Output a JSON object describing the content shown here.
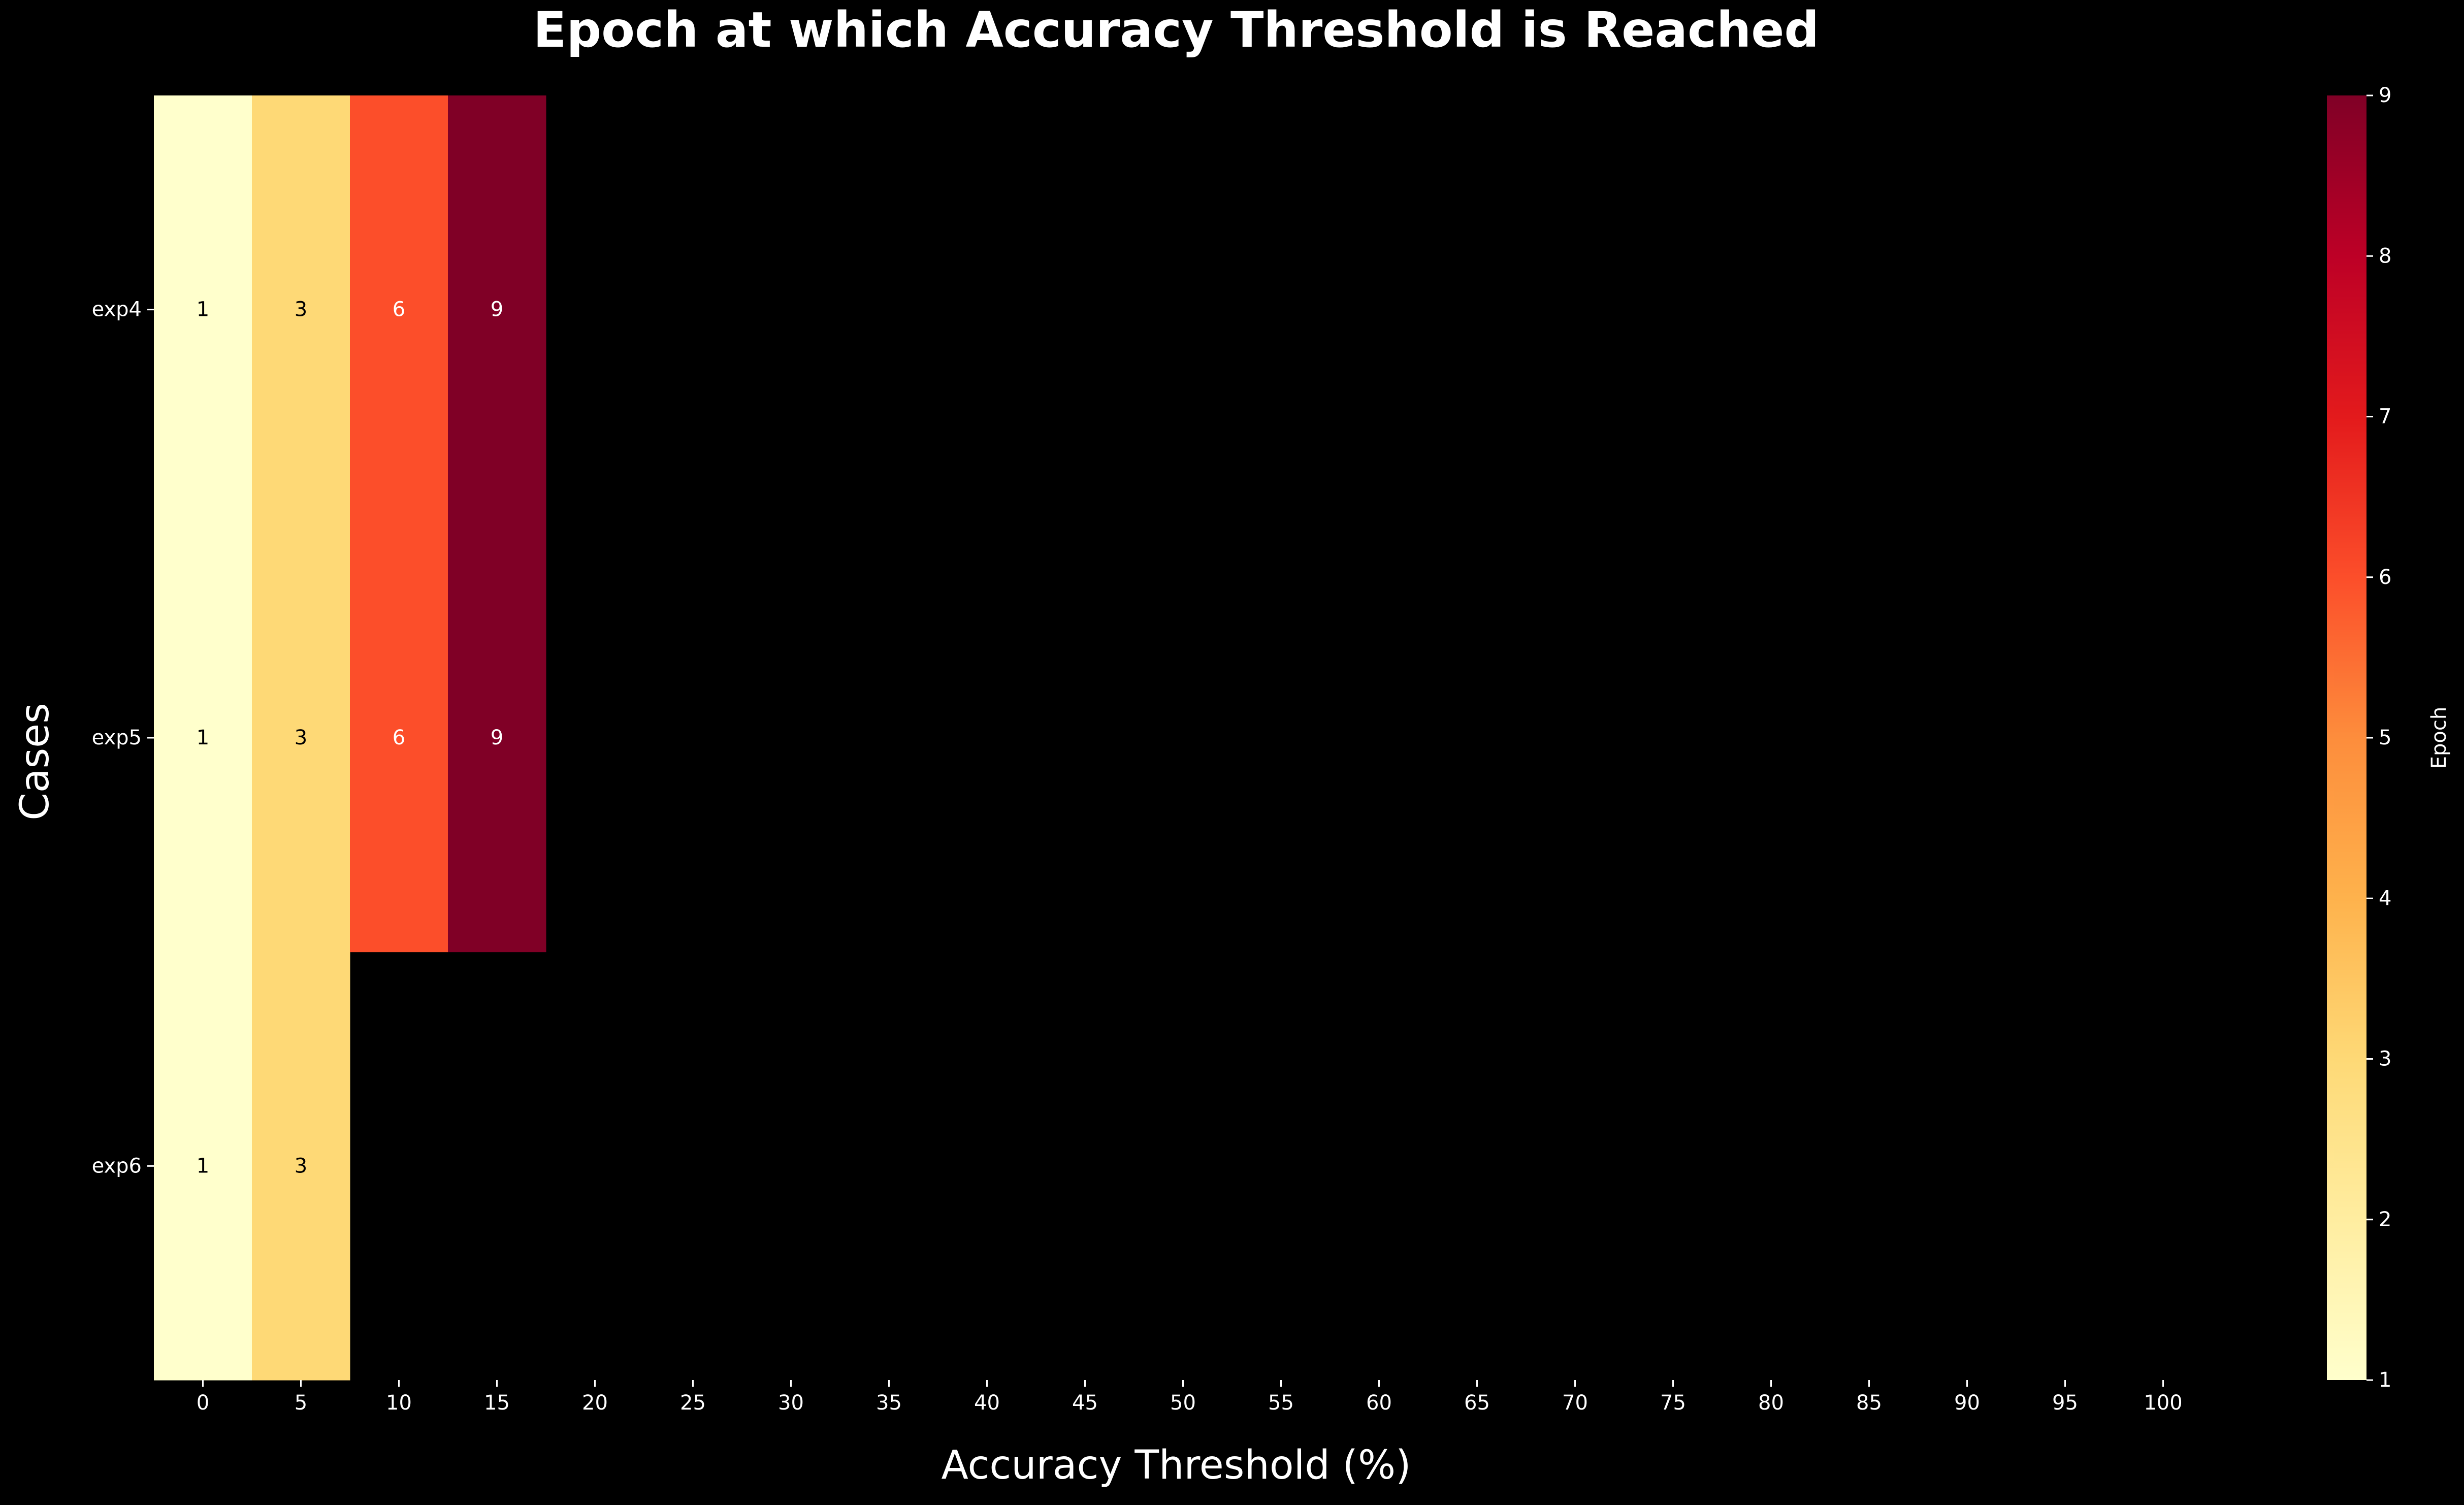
{
  "chart_data": {
    "type": "heatmap",
    "title": "Epoch at which Accuracy Threshold is Reached",
    "xlabel": "Accuracy Threshold (%)",
    "ylabel": "Cases",
    "x_categories": [
      "0",
      "5",
      "10",
      "15",
      "20",
      "25",
      "30",
      "35",
      "40",
      "45",
      "50",
      "55",
      "60",
      "65",
      "70",
      "75",
      "80",
      "85",
      "90",
      "95",
      "100"
    ],
    "y_categories": [
      "exp4",
      "exp5",
      "exp6"
    ],
    "values": [
      [
        1,
        3,
        6,
        9,
        null,
        null,
        null,
        null,
        null,
        null,
        null,
        null,
        null,
        null,
        null,
        null,
        null,
        null,
        null,
        null,
        null
      ],
      [
        1,
        3,
        6,
        9,
        null,
        null,
        null,
        null,
        null,
        null,
        null,
        null,
        null,
        null,
        null,
        null,
        null,
        null,
        null,
        null,
        null
      ],
      [
        1,
        3,
        null,
        null,
        null,
        null,
        null,
        null,
        null,
        null,
        null,
        null,
        null,
        null,
        null,
        null,
        null,
        null,
        null,
        null,
        null
      ]
    ],
    "colorbar": {
      "label": "Epoch",
      "colormap": "YlOrRd",
      "vmin": 1,
      "vmax": 9,
      "ticks": [
        "1",
        "2",
        "3",
        "4",
        "5",
        "6",
        "7",
        "8",
        "9"
      ]
    },
    "colors": {
      "background": "#000000",
      "text": "#ffffff",
      "colormap_stops": [
        "#ffffcc",
        "#ffeda0",
        "#fed976",
        "#feb24c",
        "#fd8d3c",
        "#fc4e2a",
        "#e31a1c",
        "#bd0026",
        "#800026"
      ]
    },
    "legend": "colorbar-right",
    "grid": false
  }
}
